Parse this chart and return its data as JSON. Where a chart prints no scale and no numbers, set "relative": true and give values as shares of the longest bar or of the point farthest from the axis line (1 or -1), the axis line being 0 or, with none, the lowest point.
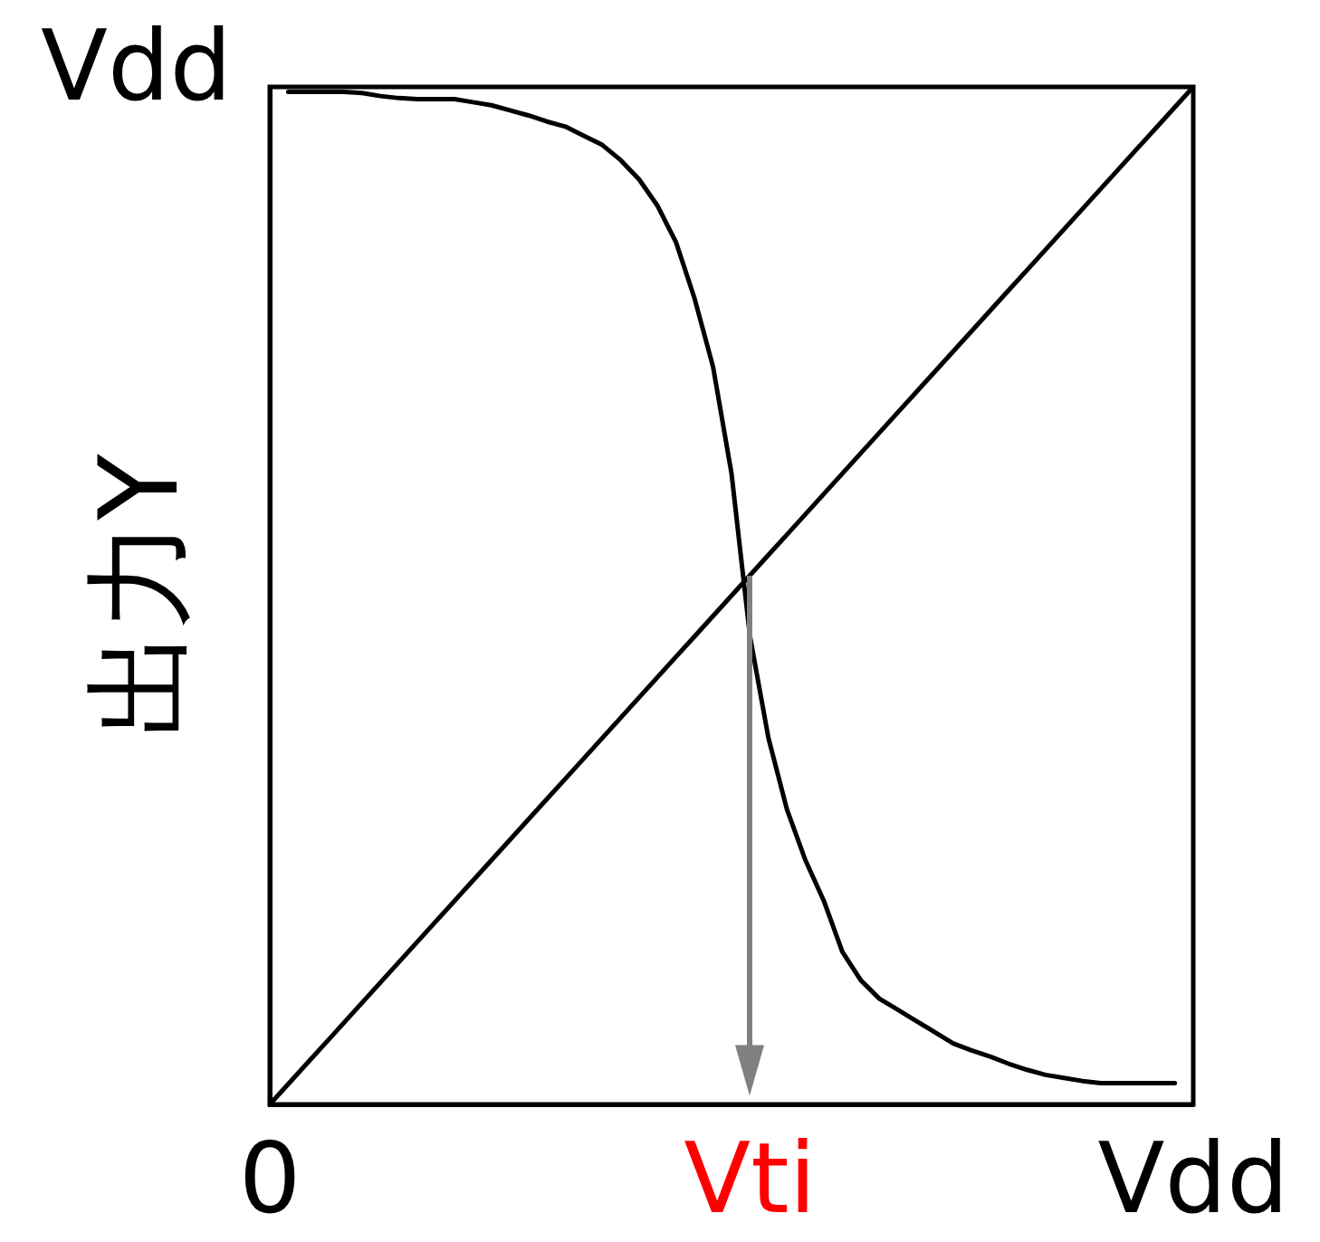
{
  "chart_data": {
    "type": "line",
    "ylabel": "出力Y",
    "relative": true,
    "categories": [
      "0",
      null,
      null,
      null,
      null,
      null,
      null,
      null,
      null,
      null,
      null,
      null,
      null,
      null,
      null,
      null,
      null,
      null,
      null,
      null,
      null,
      null,
      null,
      null,
      null,
      null,
      "Vti",
      null,
      null,
      null,
      null,
      null,
      null,
      null,
      null,
      null,
      null,
      null,
      null,
      null,
      null,
      null,
      null,
      null,
      null,
      null,
      null,
      null,
      null,
      null,
      "Vdd"
    ],
    "series": [
      {
        "color": "#000000",
        "values": [
          null,
          0.995,
          0.995,
          0.995,
          0.995,
          0.994,
          0.991,
          0.989,
          0.988,
          0.988,
          0.988,
          0.985,
          0.982,
          0.977,
          0.972,
          0.966,
          0.961,
          0.952,
          0.943,
          0.928,
          0.909,
          0.883,
          0.847,
          0.792,
          0.725,
          0.62,
          0.46,
          0.36,
          0.29,
          0.24,
          0.2,
          0.15,
          0.122,
          0.104,
          0.093,
          0.082,
          0.071,
          0.06,
          0.053,
          0.047,
          0.04,
          0.034,
          0.029,
          0.026,
          0.023,
          0.021,
          0.021,
          0.021,
          0.021,
          0.021,
          null
        ]
      },
      {
        "color": "#000000",
        "values": [
          0,
          0.02,
          0.04,
          0.06,
          0.08,
          0.1,
          0.12,
          0.14,
          0.16,
          0.18,
          0.2,
          0.22,
          0.24,
          0.26,
          0.28,
          0.3,
          0.32,
          0.34,
          0.36,
          0.38,
          0.4,
          0.42,
          0.44,
          0.46,
          0.48,
          0.5,
          0.52,
          0.54,
          0.56,
          0.58,
          0.6,
          0.62,
          0.64,
          0.66,
          0.68,
          0.7,
          0.72,
          0.74,
          0.76,
          0.78,
          0.8,
          0.82,
          0.84,
          0.86,
          0.88,
          0.9,
          0.92,
          0.94,
          0.96,
          0.98,
          1
        ]
      }
    ],
    "annotations": [
      "Vdd"
    ]
  }
}
